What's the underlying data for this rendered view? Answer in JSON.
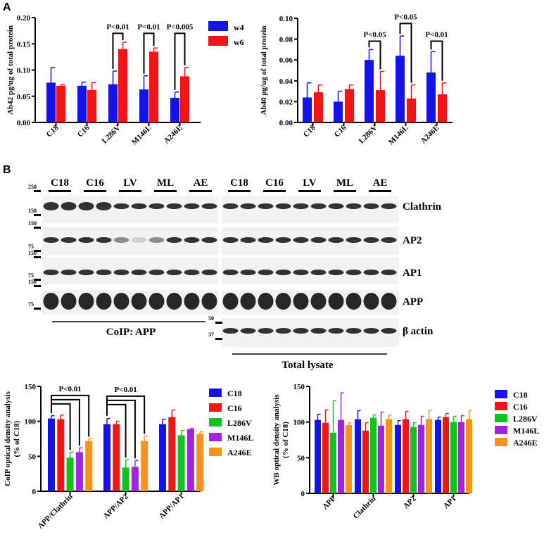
{
  "panels": {
    "a": "A",
    "b": "B"
  },
  "colors": {
    "w4": "#1414e6",
    "w6": "#f01414",
    "C18": "#1414e6",
    "C16": "#f01414",
    "L286V": "#14c21e",
    "M146L": "#a024e0",
    "A246E": "#f7921c"
  },
  "chart_data": [
    {
      "id": "ab42",
      "type": "bar",
      "title": "",
      "ylabel": "Ab42 pg/ug of total protein",
      "xlabel": "",
      "ylim": [
        0,
        0.2
      ],
      "yticks": [
        "0.00",
        "0.05",
        "0.10",
        "0.15",
        "0.20"
      ],
      "ytick_values": [
        0,
        0.05,
        0.1,
        0.15,
        0.2
      ],
      "categories": [
        "C18",
        "C16",
        "L286V",
        "M146L",
        "A246E"
      ],
      "legend_position": "top-right",
      "series": [
        {
          "name": "w4",
          "values": [
            0.076,
            0.07,
            0.073,
            0.063,
            0.047
          ],
          "errors": [
            0.029,
            0.007,
            0.025,
            0.026,
            0.011
          ]
        },
        {
          "name": "w6",
          "values": [
            0.07,
            0.062,
            0.14,
            0.135,
            0.088
          ],
          "errors": [
            0.002,
            0.014,
            0.013,
            0.007,
            0.017
          ]
        }
      ],
      "annotations": [
        {
          "category": 2,
          "text": "P<0.01",
          "level": 0.17
        },
        {
          "category": 3,
          "text": "P<0.01",
          "level": 0.17
        },
        {
          "category": 4,
          "text": "P<0.005",
          "level": 0.17
        }
      ]
    },
    {
      "id": "ab40",
      "type": "bar",
      "title": "",
      "ylabel": "Ab40 pg/ug of total protein",
      "xlabel": "",
      "ylim": [
        0,
        0.1
      ],
      "yticks": [
        "0.00",
        "0.02",
        "0.04",
        "0.06",
        "0.08",
        "0.10"
      ],
      "ytick_values": [
        0,
        0.02,
        0.04,
        0.06,
        0.08,
        0.1
      ],
      "categories": [
        "C18",
        "C16",
        "L286V",
        "M146L",
        "A246E"
      ],
      "series": [
        {
          "name": "w4",
          "values": [
            0.024,
            0.02,
            0.06,
            0.064,
            0.048
          ],
          "errors": [
            0.014,
            0.01,
            0.01,
            0.019,
            0.02
          ]
        },
        {
          "name": "w6",
          "values": [
            0.029,
            0.032,
            0.031,
            0.023,
            0.027
          ],
          "errors": [
            0.007,
            0.004,
            0.018,
            0.013,
            0.011
          ]
        }
      ],
      "annotations": [
        {
          "category": 2,
          "text": "P<0.05",
          "level": 0.078
        },
        {
          "category": 3,
          "text": "P<0.05",
          "level": 0.095
        },
        {
          "category": 4,
          "text": "P<0.01",
          "level": 0.078
        }
      ]
    },
    {
      "id": "coip",
      "type": "bar",
      "title": "",
      "ylabel": "CoIP optical density analysis",
      "ylabel2": "(% of C18)",
      "xlabel": "",
      "ylim": [
        0,
        150
      ],
      "yticks": [
        "0",
        "50",
        "100",
        "150"
      ],
      "ytick_values": [
        0,
        50,
        100,
        150
      ],
      "categories": [
        "APP/Clathrin",
        "APP/AP2",
        "APP/AP1"
      ],
      "legend_position": "right",
      "series": [
        {
          "name": "C18",
          "values": [
            104,
            96,
            96
          ],
          "errors": [
            4,
            8,
            7
          ]
        },
        {
          "name": "C16",
          "values": [
            103,
            96,
            106
          ],
          "errors": [
            6,
            4,
            10
          ]
        },
        {
          "name": "L286V",
          "values": [
            48,
            34,
            80
          ],
          "errors": [
            8,
            11,
            7
          ]
        },
        {
          "name": "M146L",
          "values": [
            56,
            35,
            89
          ],
          "errors": [
            6,
            9,
            1
          ]
        },
        {
          "name": "A246E",
          "values": [
            72,
            72,
            82
          ],
          "errors": [
            3,
            7,
            3
          ]
        }
      ],
      "annotations": [
        {
          "category": 0,
          "text": "P<0.01",
          "from": 0,
          "to": [
            2,
            3,
            4
          ],
          "levels": [
            125,
            131,
            137
          ]
        },
        {
          "category": 1,
          "text": "P<0.01",
          "from": 0,
          "to": [
            2,
            3,
            4
          ],
          "levels": [
            124,
            130,
            136
          ]
        }
      ]
    },
    {
      "id": "wb",
      "type": "bar",
      "title": "",
      "ylabel": "WB optical density analysis",
      "ylabel2": "(% of C18)",
      "xlabel": "",
      "ylim": [
        0,
        150
      ],
      "yticks": [
        "0",
        "50",
        "100",
        "150"
      ],
      "ytick_values": [
        0,
        50,
        100,
        150
      ],
      "categories": [
        "APP",
        "Clathrin",
        "AP2",
        "AP1"
      ],
      "legend_position": "right",
      "series": [
        {
          "name": "C18",
          "values": [
            103,
            104,
            96,
            103
          ],
          "errors": [
            8,
            12,
            6,
            4
          ]
        },
        {
          "name": "C16",
          "values": [
            99,
            88,
            104,
            107
          ],
          "errors": [
            18,
            11,
            11,
            5
          ]
        },
        {
          "name": "L286V",
          "values": [
            85,
            106,
            93,
            100
          ],
          "errors": [
            45,
            4,
            6,
            8
          ]
        },
        {
          "name": "M146L",
          "values": [
            103,
            95,
            96,
            100
          ],
          "errors": [
            38,
            19,
            12,
            9
          ]
        },
        {
          "name": "A246E",
          "values": [
            96,
            104,
            104,
            104
          ],
          "errors": [
            3,
            6,
            12,
            12
          ]
        }
      ],
      "annotations": []
    }
  ],
  "blot": {
    "lane_groups": [
      "C18",
      "C16",
      "LV",
      "ML",
      "AE"
    ],
    "rows": [
      "Clathrin",
      "AP2",
      "AP1",
      "APP",
      "β actin"
    ],
    "mw_left": [
      "250",
      "150",
      "150",
      "75",
      "150",
      "75",
      "150",
      "75"
    ],
    "mw_right": [
      "50",
      "37"
    ],
    "coip_label": "CoIP: APP",
    "lysate_label": "Total lysate"
  }
}
